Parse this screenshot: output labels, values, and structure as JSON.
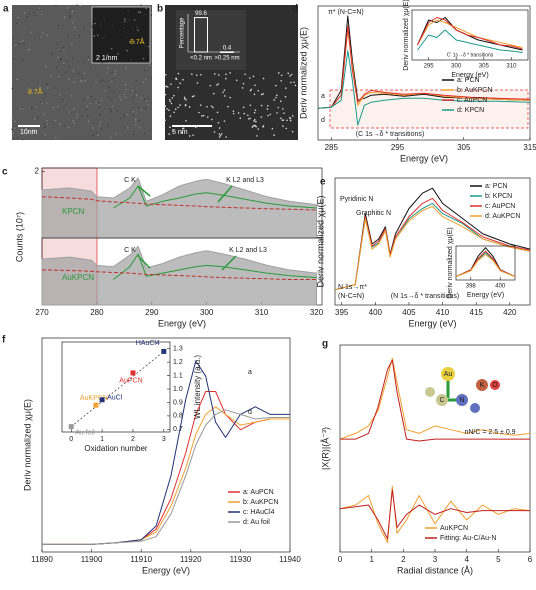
{
  "images": [
    {
      "label": "a",
      "texts": [
        "10nm",
        "8.7Å",
        "8.7Å",
        "2 1/nm"
      ]
    },
    {
      "label": "b",
      "texts": [
        "5 nm"
      ]
    }
  ],
  "chart_data": [
    {
      "type": "line",
      "label": "d",
      "xlabel": "Energy (eV)",
      "ylabel": "Deriv normalized χμ(E)",
      "xlim": [
        283,
        315
      ],
      "xticks": [
        285,
        295,
        305,
        315
      ],
      "ylim": [
        -0.3,
        1.05
      ],
      "legend": "center right",
      "x": [
        283,
        285,
        286.5,
        287.5,
        288.2,
        289,
        290,
        291,
        293,
        296,
        299,
        302,
        306,
        310,
        315
      ],
      "series": [
        {
          "name": "a: PCN",
          "color": "#111111",
          "values": [
            0.02,
            0.03,
            0.2,
            0.95,
            0.5,
            0.1,
            0.12,
            0.15,
            0.16,
            0.14,
            0.16,
            0.13,
            0.12,
            0.11,
            0.1
          ]
        },
        {
          "name": "b: AuKPCN",
          "color": "#f0a030",
          "values": [
            0.02,
            0.03,
            0.15,
            0.8,
            0.45,
            0.05,
            0.15,
            0.18,
            0.17,
            0.15,
            0.17,
            0.14,
            0.12,
            0.11,
            0.1
          ]
        },
        {
          "name": "c: AuPCN",
          "color": "#e03030",
          "values": [
            0.02,
            0.03,
            0.15,
            0.85,
            0.4,
            0.08,
            0.16,
            0.2,
            0.18,
            0.16,
            0.17,
            0.15,
            0.13,
            0.12,
            0.11
          ]
        },
        {
          "name": "d: KPCN",
          "color": "#1a9a8a",
          "values": [
            0.02,
            0.03,
            0.1,
            0.6,
            0.3,
            -0.15,
            0.05,
            0.08,
            0.1,
            0.12,
            0.12,
            0.1,
            0.09,
            0.09,
            0.08
          ]
        }
      ],
      "annotations": [
        "π* (N-C=N)",
        "(C 1s→δ * transitions)",
        "a",
        "d"
      ]
    },
    {
      "type": "line",
      "xlabel": "Energy (eV)",
      "ylabel": "Deriv normalized χμ(E)",
      "xlim": [
        292,
        313
      ],
      "xticks": [
        295,
        300,
        305,
        310
      ],
      "ylim": [
        0,
        1
      ],
      "x": [
        293,
        295,
        296.5,
        298,
        300,
        302,
        304,
        306,
        308,
        310,
        312
      ],
      "series": [
        {
          "color": "#111111",
          "values": [
            0.3,
            0.8,
            0.75,
            0.85,
            0.6,
            0.5,
            0.4,
            0.35,
            0.3,
            0.25,
            0.2
          ]
        },
        {
          "color": "#f0a030",
          "values": [
            0.3,
            0.7,
            0.8,
            0.75,
            0.65,
            0.55,
            0.45,
            0.4,
            0.35,
            0.3,
            0.25
          ]
        },
        {
          "color": "#e03030",
          "values": [
            0.3,
            0.75,
            0.85,
            0.8,
            0.6,
            0.5,
            0.45,
            0.38,
            0.3,
            0.28,
            0.22
          ]
        },
        {
          "color": "#1a9a8a",
          "values": [
            0.2,
            0.5,
            0.45,
            0.6,
            0.4,
            0.35,
            0.3,
            0.25,
            0.2,
            0.18,
            0.15
          ]
        }
      ],
      "annotations": [
        "C' 1s→δ * transitions"
      ]
    },
    {
      "type": "line",
      "label": "c",
      "ylabel": "Counts (10⁷)",
      "xlim": [
        270,
        321
      ],
      "ylim": [
        1,
        2.05
      ],
      "yticks": [
        2
      ],
      "x": [
        270,
        275,
        279,
        280,
        283,
        286,
        287.5,
        289,
        292,
        295,
        298,
        300,
        303,
        307,
        311,
        315,
        320
      ],
      "series": [
        {
          "name": "KPCN",
          "style": "area",
          "color": "#a0a0a0",
          "values": [
            1.72,
            1.75,
            1.7,
            1.62,
            1.6,
            1.75,
            1.9,
            1.55,
            1.65,
            1.78,
            1.85,
            1.88,
            1.82,
            1.72,
            1.62,
            1.55,
            1.5
          ]
        },
        {
          "style": "solid",
          "color": "#2a9a3a",
          "values": [
            null,
            null,
            null,
            null,
            1.45,
            1.6,
            1.78,
            1.48,
            1.55,
            1.6,
            1.66,
            1.68,
            1.64,
            1.58,
            1.52,
            1.48,
            1.45
          ]
        },
        {
          "style": "dashed",
          "color": "#c03030",
          "values": [
            1.62,
            1.6,
            1.58,
            1.56,
            1.54,
            1.53,
            1.52,
            1.51,
            1.5,
            1.49,
            1.48,
            1.47,
            1.46,
            1.45,
            1.44,
            1.43,
            1.42
          ]
        }
      ],
      "annotations": [
        "C K",
        "K L2 and L3"
      ]
    },
    {
      "type": "line",
      "xlabel": "Energy (eV)",
      "xlim": [
        270,
        321
      ],
      "xticks": [
        270,
        280,
        290,
        300,
        310,
        320
      ],
      "ylim": [
        0,
        1.05
      ],
      "x": [
        270,
        275,
        279,
        280,
        283,
        286,
        287.5,
        289,
        292,
        295,
        298,
        300,
        303,
        307,
        311,
        315,
        320
      ],
      "series": [
        {
          "name": "AuKPCN",
          "style": "area",
          "color": "#a0a0a0",
          "values": [
            0.72,
            0.75,
            0.7,
            0.62,
            0.6,
            0.78,
            0.92,
            0.58,
            0.65,
            0.75,
            0.82,
            0.85,
            0.8,
            0.72,
            0.62,
            0.55,
            0.5
          ]
        },
        {
          "style": "solid",
          "color": "#2a9a3a",
          "values": [
            null,
            null,
            null,
            null,
            0.4,
            0.6,
            0.8,
            0.45,
            0.5,
            0.55,
            0.6,
            0.62,
            0.6,
            0.55,
            0.5,
            0.46,
            0.43
          ]
        },
        {
          "style": "dashed",
          "color": "#c03030",
          "values": [
            0.55,
            0.54,
            0.53,
            0.52,
            0.51,
            0.5,
            0.49,
            0.48,
            0.47,
            0.46,
            0.45,
            0.44,
            0.43,
            0.42,
            0.41,
            0.4,
            0.4
          ]
        }
      ],
      "annotations": [
        "C K",
        "K L2 and L3"
      ]
    },
    {
      "type": "line",
      "label": "e",
      "xlabel": "Energy (eV)",
      "ylabel": "Deriv normalized χμ(E)",
      "xlim": [
        394,
        423
      ],
      "xticks": [
        395,
        400,
        405,
        410,
        415,
        420
      ],
      "ylim": [
        -0.15,
        1.1
      ],
      "legend": "upper right",
      "x": [
        394,
        397,
        398.5,
        399.5,
        400.5,
        401.5,
        402.2,
        403,
        405,
        407,
        408.5,
        410,
        413,
        416,
        420,
        423
      ],
      "series": [
        {
          "name": "a: PCN",
          "color": "#111111",
          "values": [
            0,
            0.05,
            0.75,
            0.45,
            0.5,
            0.62,
            0.35,
            0.55,
            0.8,
            0.95,
            1.0,
            0.85,
            0.7,
            0.55,
            0.45,
            0.4
          ]
        },
        {
          "name": "b: KPCN",
          "color": "#1a9a8a",
          "values": [
            0,
            0.05,
            0.7,
            0.42,
            0.46,
            0.6,
            0.33,
            0.5,
            0.7,
            0.8,
            0.85,
            0.75,
            0.65,
            0.5,
            0.42,
            0.38
          ]
        },
        {
          "name": "c: AuPCN",
          "color": "#e03030",
          "values": [
            0,
            0.05,
            0.72,
            0.43,
            0.48,
            0.6,
            0.34,
            0.52,
            0.72,
            0.85,
            0.9,
            0.78,
            0.66,
            0.52,
            0.43,
            0.39
          ]
        },
        {
          "name": "d: AuKPCN",
          "color": "#f0a030",
          "values": [
            0,
            0.05,
            0.7,
            0.4,
            0.45,
            0.58,
            0.32,
            0.5,
            0.68,
            0.78,
            0.82,
            0.72,
            0.62,
            0.5,
            0.42,
            0.38
          ]
        }
      ],
      "annotations": [
        "Pyridinic N",
        "Graphitic N",
        "N 1s→π*",
        "(N-C=N)",
        "(N 1s→δ * transitions)"
      ]
    },
    {
      "type": "line",
      "xlabel": "Energy (eV)",
      "ylabel": "Deriv normalized χμ(E)",
      "xlim": [
        397,
        401
      ],
      "xticks": [
        398,
        400
      ],
      "ylim": [
        0,
        1
      ],
      "x": [
        397,
        398,
        398.5,
        399,
        399.5,
        400,
        401
      ],
      "series": [
        {
          "color": "#111111",
          "values": [
            0.1,
            0.3,
            0.7,
            0.95,
            0.7,
            0.3,
            0.1
          ]
        },
        {
          "color": "#1a9a8a",
          "values": [
            0.1,
            0.28,
            0.6,
            0.8,
            0.6,
            0.28,
            0.1
          ]
        },
        {
          "color": "#e03030",
          "values": [
            0.1,
            0.29,
            0.63,
            0.85,
            0.63,
            0.29,
            0.1
          ]
        },
        {
          "color": "#f0a030",
          "values": [
            0.1,
            0.27,
            0.58,
            0.75,
            0.58,
            0.27,
            0.1
          ]
        }
      ]
    },
    {
      "type": "line",
      "label": "f",
      "xlabel": "Energy (eV)",
      "ylabel": "Deriv normalized χμ(E)",
      "xlim": [
        11890,
        11940
      ],
      "xticks": [
        11890,
        11900,
        11910,
        11920,
        11930,
        11940
      ],
      "ylim": [
        -0.05,
        1.35
      ],
      "legend": "lower right",
      "x": [
        11890,
        11900,
        11905,
        11910,
        11913,
        11916,
        11919,
        11921,
        11923,
        11925,
        11927,
        11930,
        11933,
        11936,
        11940
      ],
      "series": [
        {
          "name": "a: AuPCN",
          "color": "#e03030",
          "values": [
            0,
            0,
            0.01,
            0.03,
            0.1,
            0.3,
            0.6,
            0.85,
            1.0,
            1.0,
            0.85,
            0.75,
            0.8,
            0.82,
            0.82
          ]
        },
        {
          "name": "b: AuKPCN",
          "color": "#f0a030",
          "values": [
            0,
            0,
            0.01,
            0.03,
            0.08,
            0.25,
            0.5,
            0.72,
            0.85,
            0.9,
            0.85,
            0.78,
            0.8,
            0.82,
            0.82
          ]
        },
        {
          "name": "c: HAuCl4",
          "color": "#223377",
          "values": [
            0,
            0,
            0.01,
            0.03,
            0.12,
            0.45,
            0.95,
            1.2,
            1.1,
            0.8,
            0.7,
            0.85,
            0.9,
            0.85,
            0.85
          ]
        },
        {
          "name": "d: Au foil",
          "color": "#999999",
          "values": [
            0,
            0,
            0.01,
            0.02,
            0.05,
            0.2,
            0.45,
            0.65,
            0.78,
            0.85,
            0.88,
            0.85,
            0.82,
            0.83,
            0.83
          ]
        }
      ],
      "annotations": [
        "a",
        "d"
      ]
    },
    {
      "type": "scatter",
      "xlabel": "Oxidation number",
      "ylabel": "WL intensity (a.u.)",
      "yaxis": "right",
      "xlim": [
        -0.3,
        3.2
      ],
      "xticks": [
        0,
        1,
        2,
        3
      ],
      "ylim": [
        0.68,
        1.35
      ],
      "yticks": [
        0.7,
        0.8,
        0.9,
        {
          "value": 1,
          "label": "1.0"
        },
        1.1,
        1.2,
        1.3
      ],
      "x": [
        0,
        0.8,
        1,
        2,
        3
      ],
      "values": [
        0.72,
        0.88,
        0.92,
        1.12,
        1.28
      ],
      "labels": [
        "Au foil",
        "AuKPCN",
        "AuCl",
        "AuPCN",
        "HAuCl4"
      ],
      "colors": [
        "#999999",
        "#f0a030",
        "#223377",
        "#e03030",
        "#223377"
      ]
    },
    {
      "type": "line",
      "label": "g",
      "xlabel": "Radial distance (Å)",
      "ylabel": "|X(R)|(Å⁻³)",
      "xlim": [
        0,
        6
      ],
      "xticks": [
        0,
        1,
        2,
        3,
        4,
        5,
        6
      ],
      "ylim": [
        -0.05,
        1.05
      ],
      "legend": "lower right",
      "x": [
        0,
        0.5,
        0.9,
        1.2,
        1.5,
        1.65,
        1.8,
        2.1,
        2.5,
        3,
        3.5,
        4,
        4.5,
        5,
        5.5,
        6
      ],
      "series": [
        {
          "color": "#f0a030",
          "values": [
            0.55,
            0.58,
            0.62,
            0.7,
            0.88,
            0.98,
            0.85,
            0.6,
            0.58,
            0.62,
            0.6,
            0.58,
            0.6,
            0.58,
            0.57,
            0.58
          ]
        },
        {
          "color": "#c02020",
          "values": [
            0.55,
            0.55,
            0.58,
            0.72,
            0.92,
            0.97,
            0.8,
            0.55,
            0.54,
            0.55,
            0.55,
            0.55,
            0.55,
            0.55,
            0.55,
            0.55
          ]
        },
        {
          "name": "AuKPCN",
          "color": "#f0a030",
          "values": [
            0.18,
            0.2,
            0.25,
            0.1,
            0.0,
            0.3,
            0.05,
            0.12,
            0.25,
            0.1,
            0.22,
            0.12,
            0.2,
            0.15,
            0.18,
            0.17
          ]
        },
        {
          "name": "Fitting: Au-C/Au-N",
          "color": "#c02020",
          "values": [
            0.18,
            0.19,
            0.2,
            0.12,
            0.02,
            0.28,
            0.08,
            0.15,
            0.2,
            0.15,
            0.18,
            0.16,
            0.17,
            0.17,
            0.17,
            0.17
          ]
        }
      ],
      "annotations": [
        "nN/C = 2.5 ± 0.9",
        "Au",
        "K",
        "O",
        "C",
        "N"
      ]
    },
    {
      "type": "bar",
      "ylabel": "Percentage",
      "categories": [
        "<0.2 nm",
        ">0.25 nm"
      ],
      "values": [
        99.6,
        0.4
      ],
      "color": "#ffffff",
      "ylim": [
        0,
        110
      ]
    }
  ]
}
